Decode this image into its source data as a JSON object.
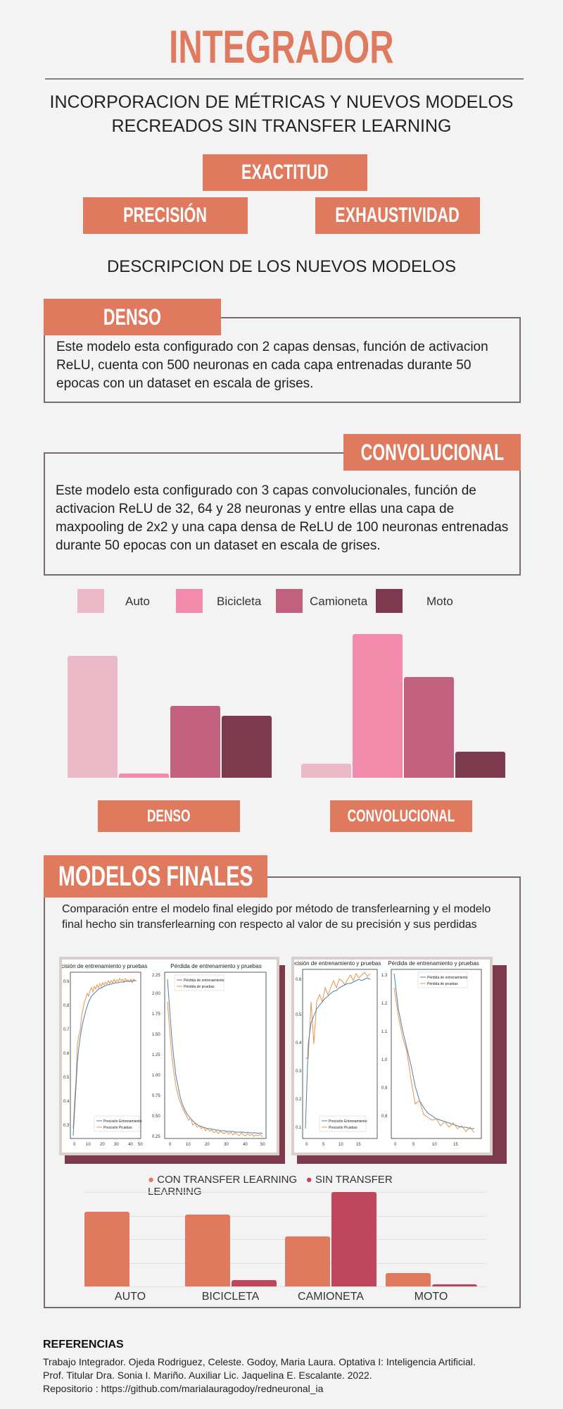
{
  "title": "INTEGRADOR",
  "subtitle_line1": "INCORPORACION DE MÉTRICAS Y NUEVOS MODELOS",
  "subtitle_line2": "RECREADOS SIN TRANSFER LEARNING",
  "metrics": {
    "exactitud": "EXACTITUD",
    "precision": "PRECISIÓN",
    "exhaustividad": "EXHAUSTIVIDAD"
  },
  "section_title": "DESCRIPCION DE LOS NUEVOS MODELOS",
  "denso": {
    "label": "DENSO",
    "description": "Este modelo esta configurado con 2 capas densas, función de activacion ReLU, cuenta con 500 neuronas en cada capa entrenadas durante 50 epocas con un dataset en escala de grises."
  },
  "convolucional": {
    "label": "CONVOLUCIONAL",
    "description": "Este modelo esta configurado con 3 capas convolucionales, función de activacion ReLU de 32, 64 y 28 neuronas y entre ellas una capa de maxpooling de 2x2 y una capa densa de ReLU de 100 neuronas entrenadas durante 50 epocas con un dataset en escala de grises."
  },
  "legend": [
    {
      "name": "Auto",
      "color": "#ebb8c8"
    },
    {
      "name": "Bicicleta",
      "color": "#f28aab"
    },
    {
      "name": "Camioneta",
      "color": "#c2617e"
    },
    {
      "name": "Moto",
      "color": "#7d3a4e"
    }
  ],
  "chart_data": [
    {
      "type": "bar",
      "categories": [
        "Auto",
        "Bicicleta",
        "Camioneta",
        "Moto"
      ],
      "values": [
        0.85,
        0.03,
        0.5,
        0.43
      ],
      "colors": [
        "#ebb8c8",
        "#f28aab",
        "#c2617e",
        "#7d3a4e"
      ],
      "xlabel": "DENSO",
      "ylim": [
        0,
        1
      ]
    },
    {
      "type": "bar",
      "categories": [
        "Auto",
        "Bicicleta",
        "Camioneta",
        "Moto"
      ],
      "values": [
        0.1,
        1.0,
        0.7,
        0.18
      ],
      "colors": [
        "#ebb8c8",
        "#f28aab",
        "#c2617e",
        "#7d3a4e"
      ],
      "xlabel": "CONVOLUCIONAL",
      "ylim": [
        0,
        1
      ]
    },
    {
      "type": "bar",
      "categories": [
        "AUTO",
        "BICICLETA",
        "CAMIONETA",
        "MOTO"
      ],
      "series": [
        {
          "name": "CON TRANSFER LEARNING",
          "color": "#e07a5f",
          "values": [
            0.79,
            0.76,
            0.53,
            0.14
          ]
        },
        {
          "name": "SIN TRANSFER LEARNING",
          "color": "#c0465c",
          "values": [
            0.0,
            0.07,
            1.0,
            0.02
          ]
        }
      ],
      "ylim": [
        0,
        1
      ]
    }
  ],
  "modelos_finales": {
    "label": "MODELOS FINALES",
    "description": "Comparación entre el modelo final elegido por método de transferlearning y el modelo final hecho sin transferlearning con respecto al valor de su precisión y sus perdidas"
  },
  "plots": {
    "acc_title": "Precisión de entrenamiento y pruebas",
    "loss_title": "Pérdida de entrenamiento y pruebas",
    "acc_legend_train": "Precisión Entrenamiento",
    "acc_legend_test": "Precisión Pruebas",
    "loss_legend_train": "Pérdida de entrenamiento",
    "loss_legend_test": "Pérdida de pruebas"
  },
  "references": {
    "heading": "REFERENCIAS",
    "line1": "Trabajo Integrador. Ojeda Rodriguez,  Celeste. Godoy, Maria Laura. Optativa I: Inteligencia Artificial.",
    "line2": "Prof. Titular Dra. Sonia I. Mariño. Auxiliar Lic. Jaquelina E. Escalante. 2022.",
    "line3": "Repositorio : https://github.com/marialauragodoy/redneuronal_ia"
  }
}
